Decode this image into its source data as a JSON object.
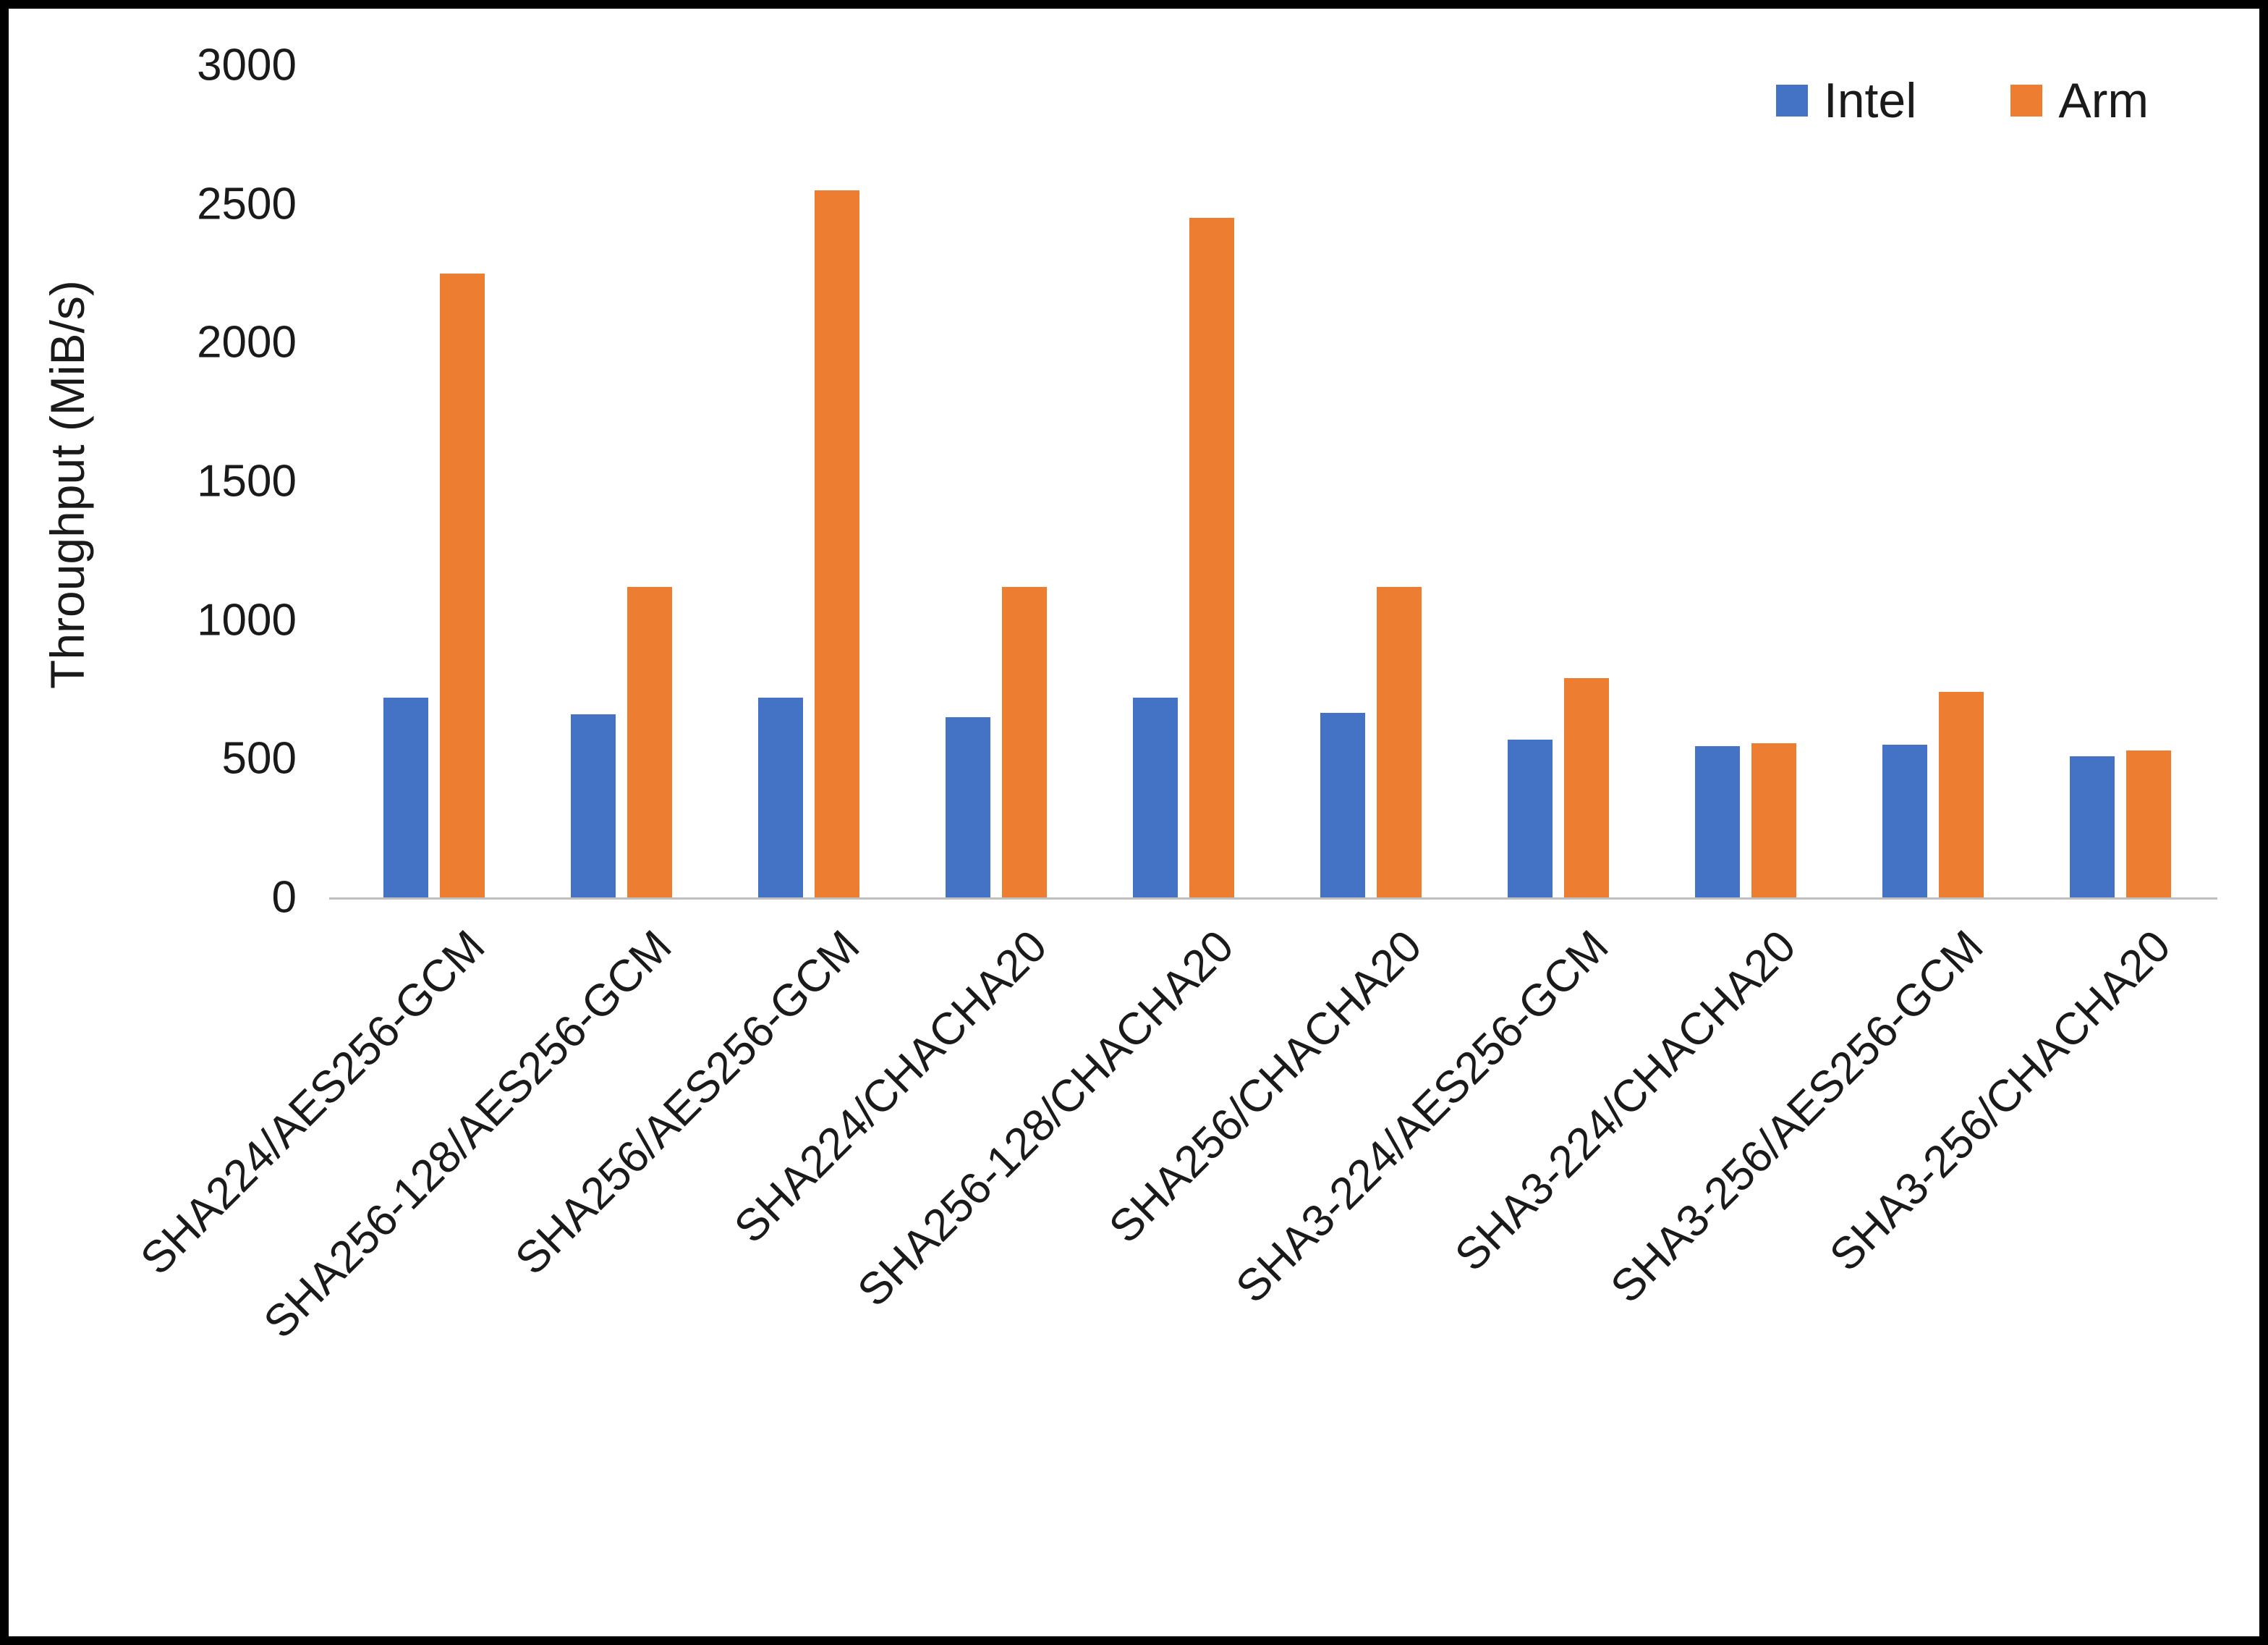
{
  "chart_data": {
    "type": "bar",
    "title": "",
    "xlabel": "",
    "ylabel": "Throughput (MiB/s)",
    "ylim": [
      0,
      3000
    ],
    "yticks": [
      0,
      500,
      1000,
      1500,
      2000,
      2500,
      3000
    ],
    "grid": false,
    "legend_position": "top-right",
    "categories": [
      "SHA224/AES256-GCM",
      "SHA256-128/AES256-GCM",
      "SHA256/AES256-GCM",
      "SHA224/CHACHA20",
      "SHA256-128/CHACHA20",
      "SHA256/CHACHA20",
      "SHA3-224/AES256-GCM",
      "SHA3-224/CHACHA20",
      "SHA3-256/AES256-GCM",
      "SHA3-256/CHACHA20"
    ],
    "series": [
      {
        "name": "Intel",
        "color": "#4472C4",
        "values": [
          720,
          660,
          720,
          650,
          720,
          665,
          570,
          545,
          550,
          510
        ]
      },
      {
        "name": "Arm",
        "color": "#ED7D31",
        "values": [
          2250,
          1120,
          2550,
          1120,
          2450,
          1120,
          790,
          555,
          740,
          530
        ]
      }
    ]
  }
}
